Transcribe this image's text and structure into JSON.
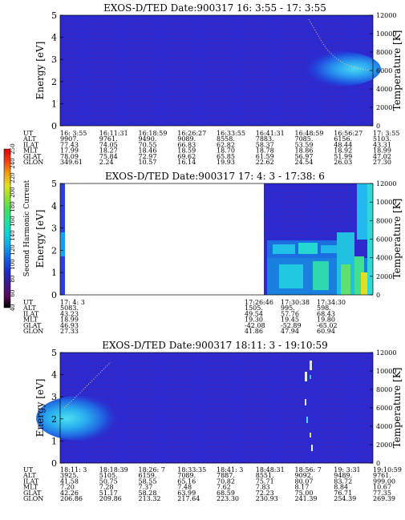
{
  "colorbar": {
    "label": "Second Harmonic Current",
    "ticks": [
      "40",
      "60",
      "80",
      "100",
      "120",
      "140",
      "160",
      "180",
      "200",
      "220",
      "240",
      "250"
    ],
    "range": [
      40,
      250
    ],
    "colors": [
      "#000000",
      "#5a0a5a",
      "#3a1a8c",
      "#1c2ec8",
      "#1060e0",
      "#10a0e8",
      "#10d0d8",
      "#20e0a0",
      "#40e060",
      "#90e030",
      "#e0e020",
      "#f0a010",
      "#f04010",
      "#e00000"
    ]
  },
  "panels": [
    {
      "title": "EXOS-D/TED   Date:900317  16: 3:55 - 17: 3:55",
      "left_axis": {
        "label": "Energy [eV]",
        "ticks": [
          "0",
          "1",
          "2",
          "3",
          "4",
          "5"
        ],
        "range": [
          0,
          5
        ]
      },
      "right_axis": {
        "label": "Temperature [K]",
        "ticks": [
          "0",
          "2000",
          "4000",
          "6000",
          "8000",
          "10000",
          "12000"
        ],
        "range": [
          0,
          12000
        ]
      },
      "rows": [
        {
          "label": "UT",
          "values": [
            "16: 3:55",
            "16:11:31",
            "16:18:59",
            "16:26:27",
            "16:33:55",
            "16:41:31",
            "16:48:59",
            "16:56:27",
            "17: 3:55"
          ]
        },
        {
          "label": "ALT",
          "values": [
            "9907.",
            "9761.",
            "9490.",
            "9089.",
            "8558.",
            "7883.",
            "7085.",
            "6156.",
            "5103."
          ]
        },
        {
          "label": "ILAT",
          "values": [
            "77.43",
            "74.05",
            "70.55",
            "66.83",
            "62.82",
            "58.37",
            "53.59",
            "48.44",
            "43.31"
          ]
        },
        {
          "label": "MLT",
          "values": [
            "17.99",
            "18.27",
            "18.46",
            "18.59",
            "18.70",
            "18.78",
            "18.86",
            "18.92",
            "18.99"
          ]
        },
        {
          "label": "GLAT",
          "values": [
            "78.09",
            "75.84",
            "72.97",
            "69.62",
            "65.85",
            "61.59",
            "56.97",
            "51.99",
            "47.02"
          ]
        },
        {
          "label": "GLON",
          "values": [
            "349.61",
            "2.24",
            "10.57",
            "16.14",
            "19.93",
            "22.62",
            "24.54",
            "26.03",
            "27.30"
          ]
        }
      ]
    },
    {
      "title": "EXOS-D/TED   Date:900317  17: 4: 3 - 17:38: 6",
      "left_axis": {
        "label": "Energy [eV]",
        "ticks": [
          "0",
          "1",
          "2",
          "3",
          "4",
          "5"
        ],
        "range": [
          0,
          5
        ]
      },
      "right_axis": {
        "label": "Temperature [K]",
        "ticks": [
          "0",
          "2000",
          "4000",
          "6000",
          "8000",
          "10000",
          "12000"
        ],
        "range": [
          0,
          12000
        ]
      },
      "rows": [
        {
          "label": "UT",
          "values": [
            "17: 4: 3",
            "17:26:46",
            "17:30:38",
            "17:34:30"
          ]
        },
        {
          "label": "ALT",
          "values": [
            "5083.",
            "1505.",
            "995.",
            "598."
          ]
        },
        {
          "label": "ILAT",
          "values": [
            "43.23",
            "49.54",
            "57.76",
            "68.43"
          ]
        },
        {
          "label": "MLT",
          "values": [
            "18.99",
            "19.30",
            "19.45",
            "19.80"
          ]
        },
        {
          "label": "GLAT",
          "values": [
            "46.93",
            "-42.08",
            "-52.89",
            "-65.02"
          ]
        },
        {
          "label": "GLON",
          "values": [
            "27.33",
            "41.86",
            "47.94",
            "60.94"
          ]
        }
      ]
    },
    {
      "title": "EXOS-D/TED   Date:900317  18:11: 3 - 19:10:59",
      "left_axis": {
        "label": "Energy [eV]",
        "ticks": [
          "0",
          "1",
          "2",
          "3",
          "4",
          "5"
        ],
        "range": [
          0,
          5
        ]
      },
      "right_axis": {
        "label": "Temperature [K]",
        "ticks": [
          "0",
          "2000",
          "4000",
          "6000",
          "8000",
          "10000",
          "12000"
        ],
        "range": [
          0,
          12000
        ]
      },
      "rows": [
        {
          "label": "UT",
          "values": [
            "18:11: 3",
            "18:18:39",
            "18:26: 7",
            "18:33:35",
            "18:41: 3",
            "18:48:31",
            "18:56: 7",
            "19: 3:31",
            "19:10:59"
          ]
        },
        {
          "label": "ALT",
          "values": [
            "3925.",
            "5105.",
            "6159.",
            "7089.",
            "7887.",
            "8551.",
            "9092.",
            "9489.",
            "9761."
          ]
        },
        {
          "label": "ILAT",
          "values": [
            "41.58",
            "50.75",
            "58.55",
            "65.16",
            "70.82",
            "75.71",
            "80.07",
            "83.72",
            "999.00"
          ]
        },
        {
          "label": "MLT",
          "values": [
            "7.20",
            "7.28",
            "7.37",
            "7.48",
            "7.62",
            "7.83",
            "8.17",
            "8.84",
            "10.67"
          ]
        },
        {
          "label": "GLAT",
          "values": [
            "42.26",
            "51.17",
            "58.28",
            "63.99",
            "68.59",
            "72.23",
            "75.00",
            "76.71",
            "77.35"
          ]
        },
        {
          "label": "GLON",
          "values": [
            "206.86",
            "209.86",
            "213.32",
            "217.64",
            "223.30",
            "230.93",
            "241.39",
            "254.39",
            "269.39"
          ]
        }
      ]
    }
  ]
}
